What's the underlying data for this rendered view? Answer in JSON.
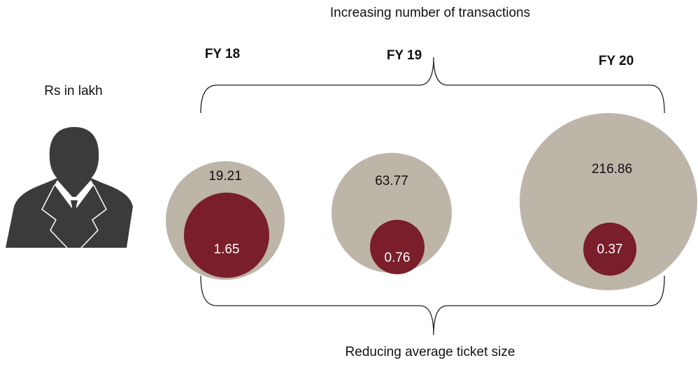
{
  "title": "Increasing number of transactions",
  "unit_label": "Rs in lakh",
  "footer": "Reducing average ticket size",
  "years": [
    {
      "label": "FY 18",
      "total": 19.21,
      "average": 1.65
    },
    {
      "label": "FY 19",
      "total": 63.77,
      "average": 0.76
    },
    {
      "label": "FY 20",
      "total": 216.86,
      "average": 0.37
    }
  ]
}
